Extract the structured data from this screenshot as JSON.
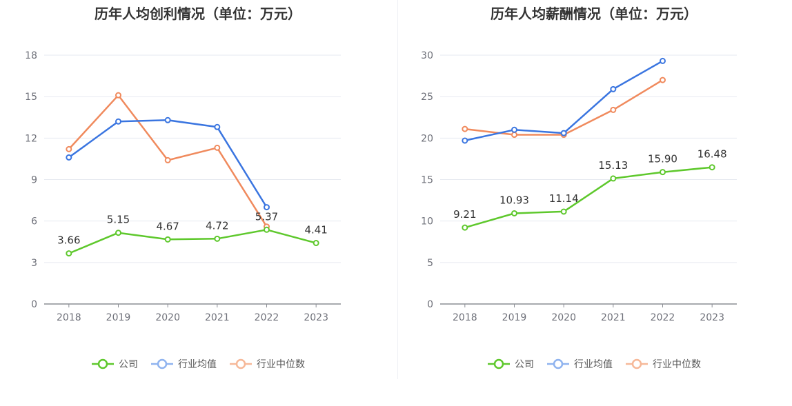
{
  "colors": {
    "company": "#5ec82c",
    "avg": "#3a75e0",
    "median": "#f08a5d",
    "avg_legend": "#8fb3ef",
    "median_legend": "#f6b898"
  },
  "legend": [
    "公司",
    "行业均值",
    "行业中位数"
  ],
  "chart_data": [
    {
      "type": "line",
      "title": "历年人均创利情况（单位：万元）",
      "categories": [
        "2018",
        "2019",
        "2020",
        "2021",
        "2022",
        "2023"
      ],
      "ylim": [
        0,
        18
      ],
      "yticks": [
        0,
        3,
        6,
        9,
        12,
        15,
        18
      ],
      "grid": true,
      "legend_position": "bottom",
      "series": [
        {
          "name": "公司",
          "values": [
            3.66,
            5.15,
            4.67,
            4.72,
            5.37,
            4.41
          ],
          "labels": [
            "3.66",
            "5.15",
            "4.67",
            "4.72",
            "5.37",
            "4.41"
          ]
        },
        {
          "name": "行业均值",
          "values": [
            10.6,
            13.2,
            13.3,
            12.8,
            7.0,
            null
          ]
        },
        {
          "name": "行业中位数",
          "values": [
            11.2,
            15.1,
            10.4,
            11.3,
            5.6,
            null
          ]
        }
      ]
    },
    {
      "type": "line",
      "title": "历年人均薪酬情况（单位：万元）",
      "categories": [
        "2018",
        "2019",
        "2020",
        "2021",
        "2022",
        "2023"
      ],
      "ylim": [
        0,
        30
      ],
      "yticks": [
        0,
        5,
        10,
        15,
        20,
        25,
        30
      ],
      "grid": true,
      "legend_position": "bottom",
      "series": [
        {
          "name": "公司",
          "values": [
            9.21,
            10.93,
            11.14,
            15.13,
            15.9,
            16.48
          ],
          "labels": [
            "9.21",
            "10.93",
            "11.14",
            "15.13",
            "15.90",
            "16.48"
          ]
        },
        {
          "name": "行业均值",
          "values": [
            19.7,
            21.0,
            20.6,
            25.9,
            29.3,
            null
          ]
        },
        {
          "name": "行业中位数",
          "values": [
            21.1,
            20.4,
            20.4,
            23.4,
            27.0,
            null
          ]
        }
      ]
    }
  ]
}
